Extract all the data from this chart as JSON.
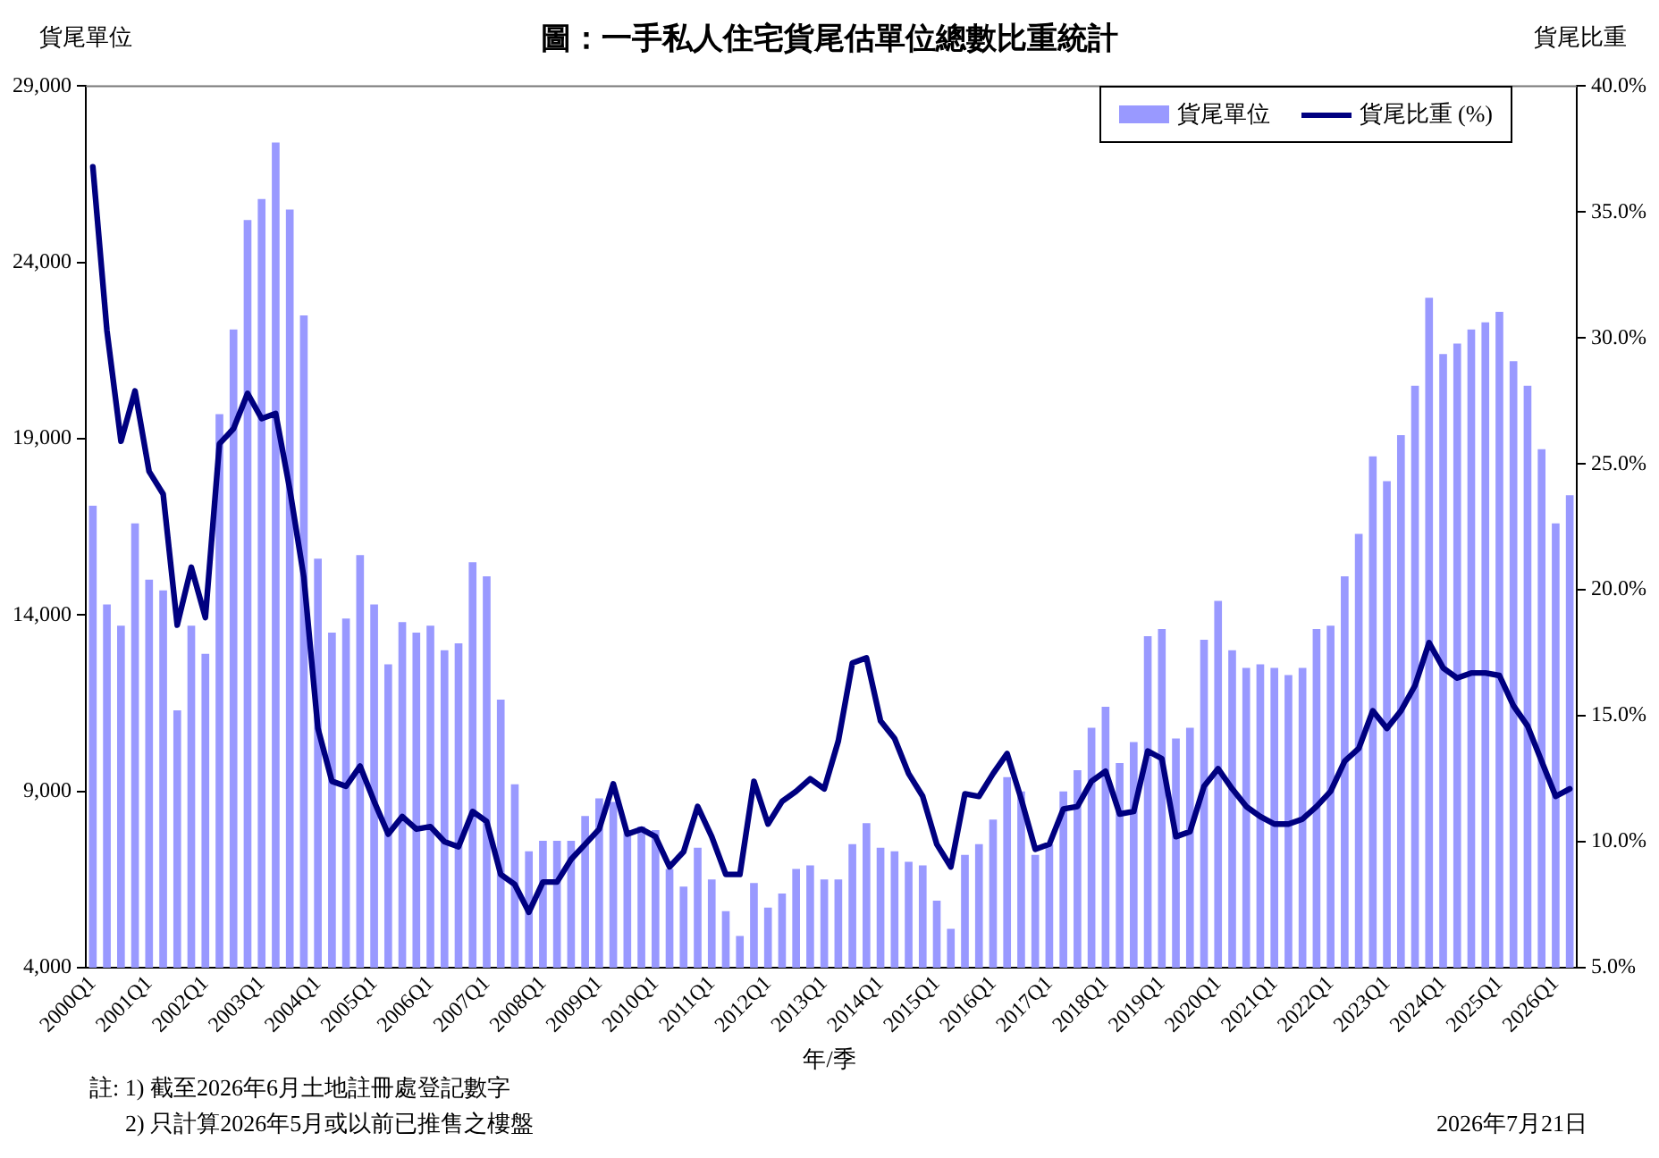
{
  "chart_data": {
    "type": "bar",
    "title": "圖：一手私人住宅貨尾估單位總數比重統計",
    "xlabel": "年/季",
    "ylabel": "貨尾單位",
    "y2label": "貨尾比重",
    "categories": [
      "2000Q1",
      null,
      null,
      null,
      "2001Q1",
      null,
      null,
      null,
      "2002Q1",
      null,
      null,
      null,
      "2003Q1",
      null,
      null,
      null,
      "2004Q1",
      null,
      null,
      null,
      "2005Q1",
      null,
      null,
      null,
      "2006Q1",
      null,
      null,
      null,
      "2007Q1",
      null,
      null,
      null,
      "2008Q1",
      null,
      null,
      null,
      "2009Q1",
      null,
      null,
      null,
      "2010Q1",
      null,
      null,
      null,
      "2011Q1",
      null,
      null,
      null,
      "2012Q1",
      null,
      null,
      null,
      "2013Q1",
      null,
      null,
      null,
      "2014Q1",
      null,
      null,
      null,
      "2015Q1",
      null,
      null,
      null,
      "2016Q1",
      null,
      null,
      null,
      "2017Q1",
      null,
      null,
      null,
      "2018Q1",
      null,
      null,
      null,
      "2019Q1",
      null,
      null,
      null,
      "2020Q1",
      null,
      null,
      null,
      "2021Q1",
      null,
      null,
      null,
      "2022Q1",
      null,
      null,
      null,
      "2023Q1",
      null,
      null,
      null,
      "2024Q1",
      null,
      null,
      null,
      "2025Q1",
      null,
      null,
      null,
      "2026Q1",
      null
    ],
    "series": [
      {
        "name": "貨尾單位",
        "color": "#9999ff",
        "values": [
          17100,
          14300,
          13700,
          16600,
          15000,
          14700,
          11300,
          13700,
          12900,
          19700,
          22100,
          25200,
          25800,
          27400,
          25500,
          22500,
          15600,
          13500,
          13900,
          15700,
          14300,
          12600,
          13800,
          13500,
          13700,
          13000,
          13200,
          15500,
          15100,
          11600,
          9200,
          7300,
          7600,
          7600,
          7600,
          8300,
          8800,
          8700,
          7900,
          8000,
          7900,
          6800,
          6300,
          7400,
          6500,
          5600,
          4900,
          6400,
          5700,
          6100,
          6800,
          6900,
          6500,
          6500,
          7500,
          8100,
          7400,
          7300,
          7000,
          6900,
          5900,
          5100,
          7200,
          7500,
          8200,
          9400,
          9000,
          7200,
          7500,
          9000,
          9600,
          10800,
          11400,
          9800,
          10400,
          13400,
          13600,
          10500,
          10800,
          13300,
          14400,
          13000,
          12500,
          12600,
          12500,
          12300,
          12500,
          13600,
          13700,
          15100,
          16300,
          18500,
          17800,
          19100,
          20500,
          23000,
          21400,
          21700,
          22100,
          22300,
          22600,
          21200,
          20500,
          18700,
          16600,
          17400
        ]
      },
      {
        "name": "貨尾比重 (%)",
        "type": "line",
        "axis": "y2",
        "color": "#000080",
        "values": [
          36.8,
          30.3,
          25.9,
          27.9,
          24.7,
          23.8,
          18.6,
          20.9,
          18.9,
          25.8,
          26.4,
          27.8,
          26.8,
          27.0,
          24.0,
          20.5,
          14.5,
          12.4,
          12.2,
          13.0,
          11.6,
          10.3,
          11.0,
          10.5,
          10.6,
          10.0,
          9.8,
          11.2,
          10.8,
          8.7,
          8.3,
          7.2,
          8.4,
          8.4,
          9.3,
          9.9,
          10.5,
          12.3,
          10.3,
          10.5,
          10.2,
          9.0,
          9.6,
          11.4,
          10.2,
          8.7,
          8.7,
          12.4,
          10.7,
          11.6,
          12.0,
          12.5,
          12.1,
          14.0,
          17.1,
          17.3,
          14.8,
          14.1,
          12.7,
          11.8,
          9.9,
          9.0,
          11.9,
          11.8,
          12.7,
          13.5,
          11.7,
          9.7,
          9.9,
          11.3,
          11.4,
          12.4,
          12.8,
          11.1,
          11.2,
          13.6,
          13.3,
          10.2,
          10.4,
          12.2,
          12.9,
          12.1,
          11.4,
          11.0,
          10.7,
          10.7,
          10.9,
          11.4,
          12.0,
          13.2,
          13.7,
          15.2,
          14.5,
          15.2,
          16.2,
          17.9,
          16.9,
          16.5,
          16.7,
          16.7,
          16.6,
          15.4,
          14.6,
          13.2,
          11.8,
          12.1
        ]
      }
    ],
    "ylim": [
      4000,
      29000
    ],
    "yticks": [
      {
        "value": 4000,
        "label": "4,000"
      },
      {
        "value": 9000,
        "label": "9,000"
      },
      {
        "value": 14000,
        "label": "14,000"
      },
      {
        "value": 19000,
        "label": "19,000"
      },
      {
        "value": 24000,
        "label": "24,000"
      },
      {
        "value": 29000,
        "label": "29,000"
      }
    ],
    "y2lim": [
      5,
      40
    ],
    "y2ticks": [
      {
        "value": 5,
        "label": "5.0%"
      },
      {
        "value": 10,
        "label": "10.0%"
      },
      {
        "value": 15,
        "label": "15.0%"
      },
      {
        "value": 20,
        "label": "20.0%"
      },
      {
        "value": 25,
        "label": "25.0%"
      },
      {
        "value": 30,
        "label": "30.0%"
      },
      {
        "value": 35,
        "label": "35.0%"
      },
      {
        "value": 40,
        "label": "40.0%"
      }
    ],
    "grid": false,
    "legend": "top right",
    "marker": "none",
    "line_style": "solid",
    "annotations": [
      "註: 1) 截至2026年6月土地註冊處登記數字",
      "2) 只計算2026年5月或以前已推售之樓盤",
      "2026年7月21日"
    ]
  }
}
